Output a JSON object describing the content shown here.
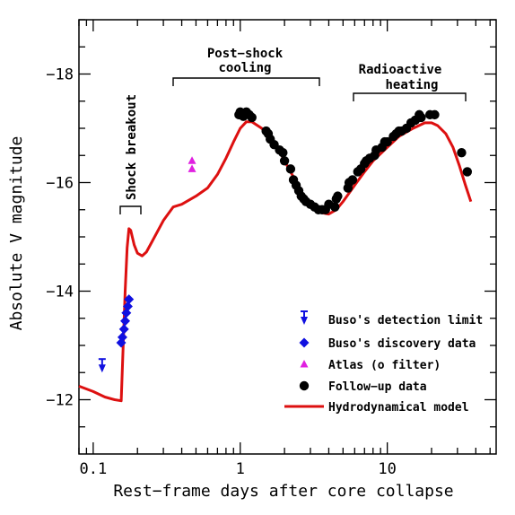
{
  "chart_data": {
    "type": "scatter",
    "xlabel": "Rest−frame days after core collapse",
    "ylabel": "Absolute V magnitude",
    "xscale": "log",
    "xlim": [
      0.08,
      55
    ],
    "ylim": [
      -11,
      -19
    ],
    "x_ticks": [
      0.1,
      1,
      10
    ],
    "x_tick_labels": [
      "0.1",
      "1",
      "10"
    ],
    "y_ticks": [
      -12,
      -14,
      -16,
      -18
    ],
    "y_tick_labels": [
      "−12",
      "−14",
      "−16",
      "−18"
    ],
    "annotations": {
      "shock_breakout": "Shock breakout",
      "post_shock_line1": "Post−shock",
      "post_shock_line2": "cooling",
      "radioactive_line1": "Radioactive",
      "radioactive_line2": "heating"
    },
    "legend_position": "bottom-right",
    "series": [
      {
        "name": "Buso's detection limit",
        "marker": "triangle-down-limit",
        "color": "#1010e0",
        "points": [
          [
            0.115,
            -12.6
          ]
        ]
      },
      {
        "name": "Buso's discovery data",
        "marker": "diamond",
        "color": "#1010e0",
        "points": [
          [
            0.155,
            -13.05
          ],
          [
            0.158,
            -13.15
          ],
          [
            0.162,
            -13.3
          ],
          [
            0.165,
            -13.45
          ],
          [
            0.168,
            -13.6
          ],
          [
            0.172,
            -13.72
          ],
          [
            0.175,
            -13.85
          ]
        ]
      },
      {
        "name": "Atlas (o filter)",
        "marker": "triangle-up",
        "color": "#e020e0",
        "points": [
          [
            0.47,
            -16.25
          ],
          [
            0.47,
            -16.4
          ]
        ]
      },
      {
        "name": "Follow−up data",
        "marker": "circle",
        "color": "#000000",
        "points": [
          [
            0.98,
            -17.25
          ],
          [
            1.0,
            -17.3
          ],
          [
            1.05,
            -17.22
          ],
          [
            1.1,
            -17.3
          ],
          [
            1.15,
            -17.25
          ],
          [
            1.2,
            -17.2
          ],
          [
            1.5,
            -16.95
          ],
          [
            1.55,
            -16.9
          ],
          [
            1.6,
            -16.8
          ],
          [
            1.7,
            -16.7
          ],
          [
            1.85,
            -16.6
          ],
          [
            1.95,
            -16.55
          ],
          [
            2.0,
            -16.4
          ],
          [
            2.2,
            -16.25
          ],
          [
            2.3,
            -16.05
          ],
          [
            2.4,
            -15.95
          ],
          [
            2.5,
            -15.85
          ],
          [
            2.6,
            -15.75
          ],
          [
            2.7,
            -15.7
          ],
          [
            2.8,
            -15.65
          ],
          [
            3.0,
            -15.6
          ],
          [
            3.2,
            -15.55
          ],
          [
            3.4,
            -15.5
          ],
          [
            3.6,
            -15.5
          ],
          [
            3.8,
            -15.5
          ],
          [
            4.0,
            -15.6
          ],
          [
            4.4,
            -15.55
          ],
          [
            4.5,
            -15.7
          ],
          [
            4.6,
            -15.75
          ],
          [
            5.4,
            -15.9
          ],
          [
            5.5,
            -16.0
          ],
          [
            5.8,
            -16.05
          ],
          [
            6.3,
            -16.2
          ],
          [
            6.6,
            -16.25
          ],
          [
            7.0,
            -16.35
          ],
          [
            7.2,
            -16.4
          ],
          [
            7.6,
            -16.45
          ],
          [
            8.2,
            -16.5
          ],
          [
            8.4,
            -16.6
          ],
          [
            9.2,
            -16.65
          ],
          [
            9.6,
            -16.75
          ],
          [
            10.0,
            -16.75
          ],
          [
            11.0,
            -16.85
          ],
          [
            11.5,
            -16.9
          ],
          [
            12.0,
            -16.95
          ],
          [
            12.5,
            -16.95
          ],
          [
            13.5,
            -17.0
          ],
          [
            14.5,
            -17.1
          ],
          [
            15.5,
            -17.15
          ],
          [
            16.5,
            -17.25
          ],
          [
            17.0,
            -17.2
          ],
          [
            19.5,
            -17.25
          ],
          [
            21.0,
            -17.25
          ],
          [
            32.0,
            -16.55
          ],
          [
            35.0,
            -16.2
          ]
        ]
      },
      {
        "name": "Hydrodynamical model",
        "marker": "line",
        "color": "#dd1010",
        "points": [
          [
            0.08,
            -12.25
          ],
          [
            0.1,
            -12.15
          ],
          [
            0.12,
            -12.05
          ],
          [
            0.14,
            -12.0
          ],
          [
            0.155,
            -11.98
          ],
          [
            0.16,
            -13.0
          ],
          [
            0.165,
            -14.0
          ],
          [
            0.17,
            -14.8
          ],
          [
            0.175,
            -15.15
          ],
          [
            0.18,
            -15.12
          ],
          [
            0.19,
            -14.85
          ],
          [
            0.2,
            -14.7
          ],
          [
            0.215,
            -14.65
          ],
          [
            0.23,
            -14.72
          ],
          [
            0.25,
            -14.9
          ],
          [
            0.3,
            -15.3
          ],
          [
            0.35,
            -15.55
          ],
          [
            0.4,
            -15.6
          ],
          [
            0.5,
            -15.75
          ],
          [
            0.6,
            -15.9
          ],
          [
            0.7,
            -16.15
          ],
          [
            0.8,
            -16.45
          ],
          [
            0.9,
            -16.75
          ],
          [
            1.0,
            -17.0
          ],
          [
            1.1,
            -17.12
          ],
          [
            1.2,
            -17.12
          ],
          [
            1.4,
            -17.0
          ],
          [
            1.6,
            -16.85
          ],
          [
            1.8,
            -16.65
          ],
          [
            2.0,
            -16.4
          ],
          [
            2.3,
            -16.1
          ],
          [
            2.6,
            -15.8
          ],
          [
            3.0,
            -15.55
          ],
          [
            3.5,
            -15.45
          ],
          [
            4.0,
            -15.42
          ],
          [
            4.5,
            -15.5
          ],
          [
            5.0,
            -15.65
          ],
          [
            6.0,
            -15.95
          ],
          [
            7.0,
            -16.2
          ],
          [
            8.0,
            -16.4
          ],
          [
            10.0,
            -16.65
          ],
          [
            12.0,
            -16.85
          ],
          [
            15.0,
            -17.0
          ],
          [
            18.0,
            -17.1
          ],
          [
            20.0,
            -17.1
          ],
          [
            22.0,
            -17.05
          ],
          [
            25.0,
            -16.9
          ],
          [
            28.0,
            -16.65
          ],
          [
            31.0,
            -16.3
          ],
          [
            34.0,
            -15.95
          ],
          [
            37.0,
            -15.65
          ]
        ]
      }
    ]
  }
}
